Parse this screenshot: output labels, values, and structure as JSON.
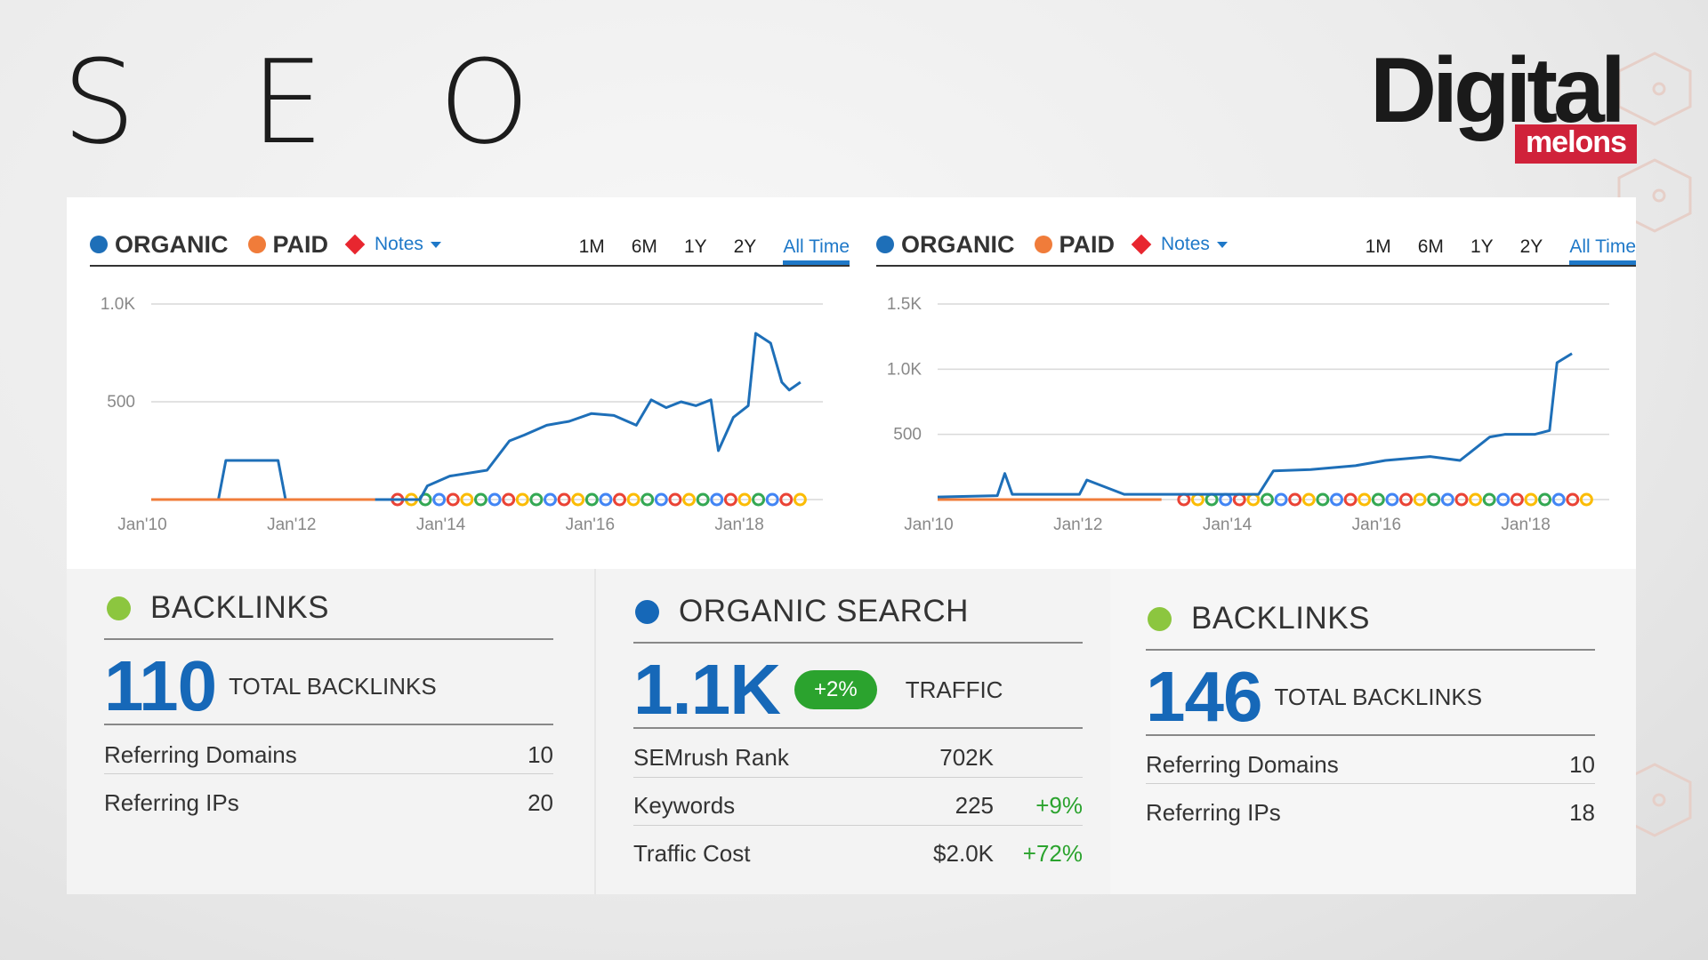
{
  "header": {
    "title": "S E O"
  },
  "logo": {
    "word": "Digital",
    "sub": "melons"
  },
  "charts": [
    {
      "legend": {
        "organic": "ORGANIC",
        "paid": "PAID",
        "notes": "Notes"
      },
      "periods": [
        "1M",
        "6M",
        "1Y",
        "2Y",
        "All Time"
      ],
      "active_period": "All Time",
      "y_ticks": [
        "1.0K",
        "500"
      ],
      "x_ticks": [
        "Jan'10",
        "Jan'12",
        "Jan'14",
        "Jan'16",
        "Jan'18"
      ]
    },
    {
      "legend": {
        "organic": "ORGANIC",
        "paid": "PAID",
        "notes": "Notes"
      },
      "periods": [
        "1M",
        "6M",
        "1Y",
        "2Y",
        "All Time"
      ],
      "active_period": "All Time",
      "y_ticks": [
        "1.5K",
        "1.0K",
        "500"
      ],
      "x_ticks": [
        "Jan'10",
        "Jan'12",
        "Jan'14",
        "Jan'16",
        "Jan'18"
      ]
    }
  ],
  "chart_data": [
    {
      "type": "line",
      "xlabel": "",
      "ylabel": "",
      "x_range": [
        "Jan'10",
        "Jan'19"
      ],
      "ylim": [
        0,
        1000
      ],
      "series": [
        {
          "name": "ORGANIC",
          "color": "#1e6fb8",
          "x": [
            2010.0,
            2010.9,
            2011.0,
            2011.7,
            2011.8,
            2013.6,
            2013.7,
            2014.0,
            2014.5,
            2014.8,
            2015.0,
            2015.3,
            2015.6,
            2015.9,
            2016.2,
            2016.5,
            2016.7,
            2016.9,
            2017.1,
            2017.3,
            2017.5,
            2017.6,
            2017.8,
            2018.0,
            2018.1,
            2018.3,
            2018.45,
            2018.55,
            2018.7
          ],
          "values": [
            0,
            0,
            200,
            200,
            0,
            0,
            70,
            120,
            150,
            300,
            330,
            380,
            400,
            440,
            430,
            380,
            510,
            470,
            500,
            480,
            510,
            250,
            420,
            480,
            850,
            800,
            600,
            560,
            600
          ]
        },
        {
          "name": "PAID",
          "color": "#f07c3a",
          "x": [
            2010.0,
            2013.0
          ],
          "values": [
            0,
            0
          ]
        }
      ]
    },
    {
      "type": "line",
      "xlabel": "",
      "ylabel": "",
      "x_range": [
        "Jan'10",
        "Jan'19"
      ],
      "ylim": [
        0,
        1500
      ],
      "series": [
        {
          "name": "ORGANIC",
          "color": "#1e6fb8",
          "x": [
            2010.0,
            2010.8,
            2010.9,
            2011.0,
            2011.9,
            2012.0,
            2012.5,
            2013.5,
            2014.3,
            2014.5,
            2015.0,
            2015.6,
            2016.0,
            2016.6,
            2017.0,
            2017.4,
            2017.6,
            2018.0,
            2018.2,
            2018.3,
            2018.5
          ],
          "values": [
            20,
            30,
            200,
            40,
            40,
            150,
            40,
            40,
            40,
            220,
            230,
            260,
            300,
            330,
            300,
            480,
            500,
            500,
            530,
            1050,
            1120
          ]
        },
        {
          "name": "PAID",
          "color": "#f07c3a",
          "x": [
            2010.0,
            2013.0
          ],
          "values": [
            0,
            0
          ]
        }
      ]
    }
  ],
  "cards": {
    "backlinks_1": {
      "title": "BACKLINKS",
      "total": "110",
      "total_label": "TOTAL BACKLINKS",
      "rows": [
        {
          "label": "Referring Domains",
          "value": "10"
        },
        {
          "label": "Referring IPs",
          "value": "20"
        }
      ]
    },
    "organic": {
      "title": "ORGANIC SEARCH",
      "total": "1.1K",
      "badge": "+2%",
      "total_label": "TRAFFIC",
      "rows": [
        {
          "label": "SEMrush Rank",
          "value": "702K",
          "change": ""
        },
        {
          "label": "Keywords",
          "value": "225",
          "change": "+9%"
        },
        {
          "label": "Traffic Cost",
          "value": "$2.0K",
          "change": "+72%"
        }
      ]
    },
    "backlinks_2": {
      "title": "BACKLINKS",
      "total": "146",
      "total_label": "TOTAL BACKLINKS",
      "rows": [
        {
          "label": "Referring Domains",
          "value": "10"
        },
        {
          "label": "Referring IPs",
          "value": "18"
        }
      ]
    }
  },
  "colors": {
    "organic": "#1e6fb8",
    "paid": "#f07c3a",
    "notes": "#e8262f",
    "backlinks": "#8cc63f",
    "accent": "#1668b8",
    "positive": "#2ba32e",
    "logo_red": "#d0223a"
  }
}
